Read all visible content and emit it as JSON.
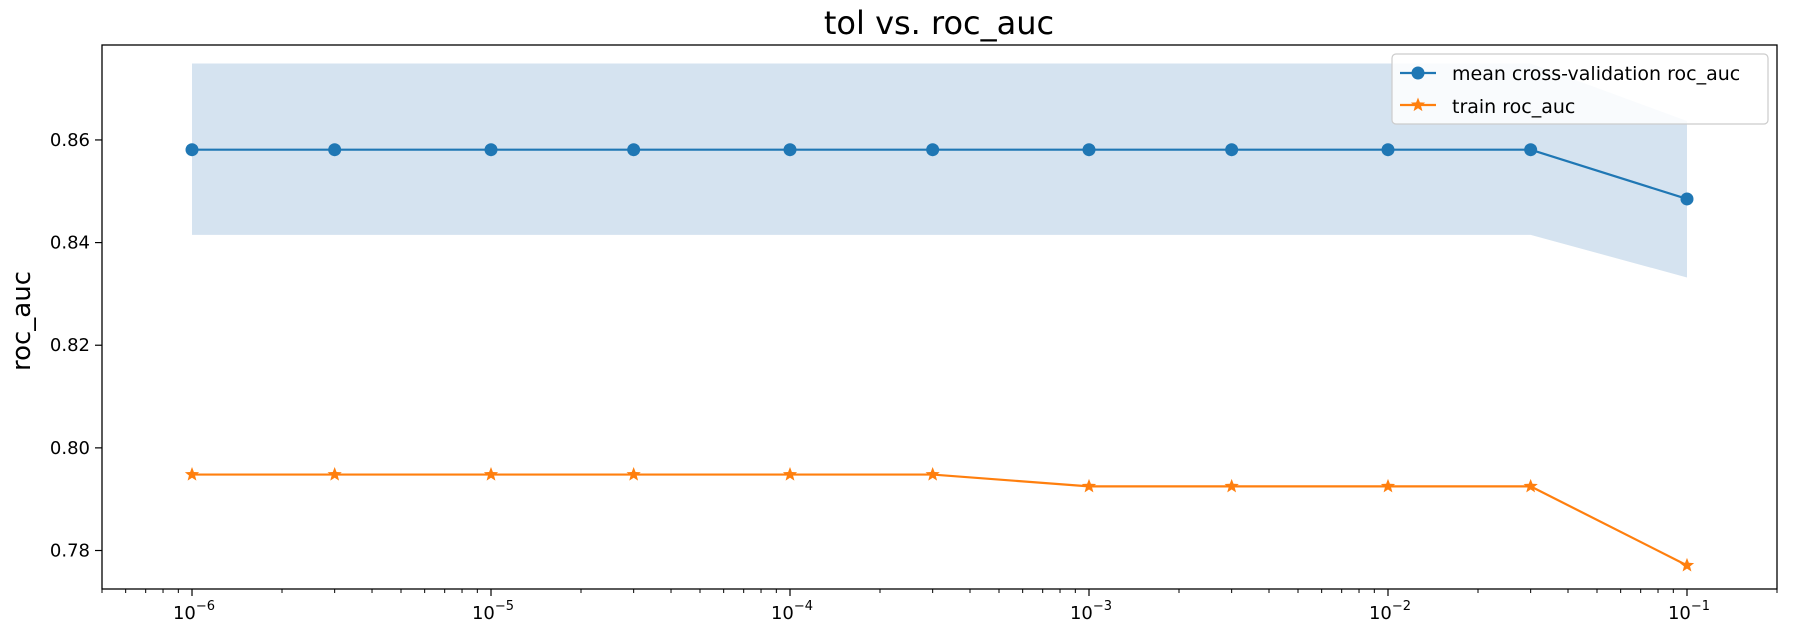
{
  "chart_data": {
    "type": "line",
    "title": "tol vs. roc_auc",
    "xlabel": "",
    "ylabel": "roc_auc",
    "xscale": "log",
    "x": [
      1e-06,
      3e-06,
      1e-05,
      3e-05,
      0.0001,
      0.0003,
      0.001,
      0.003,
      0.01,
      0.03,
      0.1
    ],
    "xlim": [
      5e-07,
      0.2
    ],
    "ylim": [
      0.7725,
      0.8785
    ],
    "x_ticks": [
      {
        "value": 1e-06,
        "base": "10",
        "exp": "−6"
      },
      {
        "value": 1e-05,
        "base": "10",
        "exp": "−5"
      },
      {
        "value": 0.0001,
        "base": "10",
        "exp": "−4"
      },
      {
        "value": 0.001,
        "base": "10",
        "exp": "−3"
      },
      {
        "value": 0.01,
        "base": "10",
        "exp": "−2"
      },
      {
        "value": 0.1,
        "base": "10",
        "exp": "−1"
      }
    ],
    "y_ticks": [
      {
        "value": 0.78,
        "label": "0.78"
      },
      {
        "value": 0.8,
        "label": "0.80"
      },
      {
        "value": 0.82,
        "label": "0.82"
      },
      {
        "value": 0.84,
        "label": "0.84"
      },
      {
        "value": 0.86,
        "label": "0.86"
      }
    ],
    "series": [
      {
        "name": "mean cross-validation roc_auc",
        "color": "#1f77b4",
        "marker": "circle",
        "values": [
          0.8581,
          0.8581,
          0.8581,
          0.8581,
          0.8581,
          0.8581,
          0.8581,
          0.8581,
          0.8581,
          0.8581,
          0.8485
        ],
        "band_upper": [
          0.8749,
          0.8749,
          0.8749,
          0.8749,
          0.8749,
          0.8749,
          0.8749,
          0.8749,
          0.8749,
          0.8749,
          0.8637
        ],
        "band_lower": [
          0.8415,
          0.8415,
          0.8415,
          0.8415,
          0.8415,
          0.8415,
          0.8415,
          0.8415,
          0.8415,
          0.8415,
          0.8332
        ],
        "band_color": "#d5e3f0"
      },
      {
        "name": "train roc_auc",
        "color": "#ff7f0e",
        "marker": "star",
        "values": [
          0.7948,
          0.7948,
          0.7948,
          0.7948,
          0.7948,
          0.7948,
          0.7925,
          0.7925,
          0.7925,
          0.7925,
          0.7771
        ]
      }
    ],
    "legend": "top-right",
    "grid": false
  }
}
